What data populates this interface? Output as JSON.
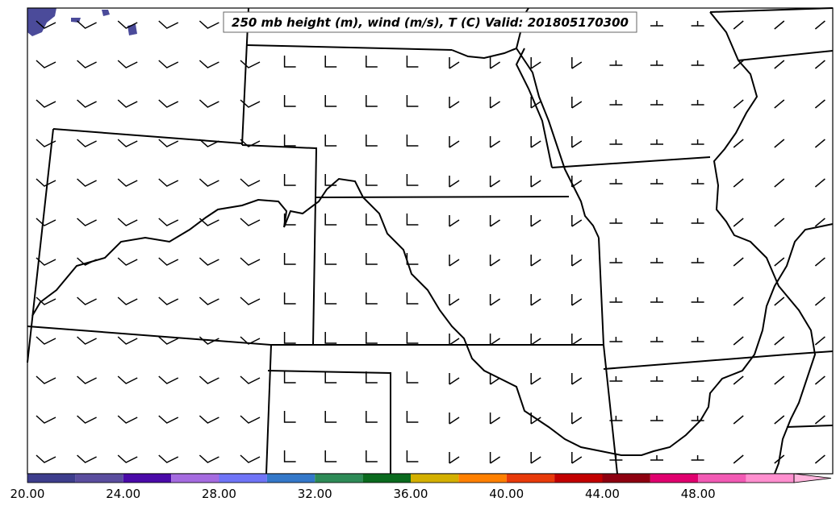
{
  "title": "250 mb height (m), wind (m/s), T (C) Valid: 201805170300",
  "colors": {
    "background": "#ffffff",
    "lines": "#000000",
    "lake_fill": "#4b4b9a"
  },
  "colorbar": {
    "tick_labels": [
      "20.00",
      "24.00",
      "28.00",
      "32.00",
      "36.00",
      "40.00",
      "44.00",
      "48.00"
    ],
    "tick_values": [
      20,
      24,
      28,
      32,
      36,
      40,
      44,
      48
    ],
    "range": [
      20,
      52
    ],
    "extend": "max",
    "band_colors": [
      "#3d3d8c",
      "#5a4d9e",
      "#4a0aa8",
      "#a56be0",
      "#6f74f7",
      "#3478c9",
      "#2e8b57",
      "#0a6a1e",
      "#d4b000",
      "#ff8000",
      "#e83a0a",
      "#c20000",
      "#8e0010",
      "#e0006e",
      "#f25ab4",
      "#ff8fcf"
    ]
  },
  "wind_barbs": {
    "description_units": "m/s",
    "rows": 12,
    "cols": 20
  }
}
